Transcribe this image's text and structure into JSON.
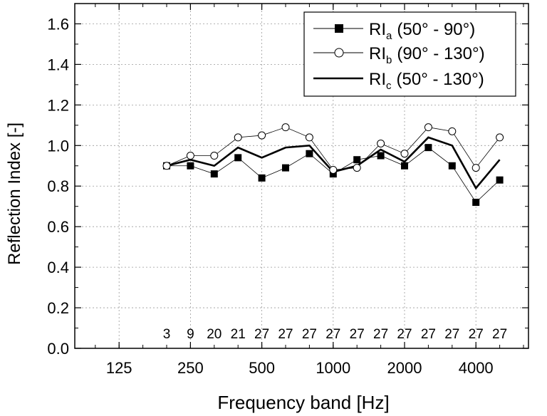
{
  "chart_data": {
    "type": "line",
    "xlabel": "Frequency band [Hz]",
    "ylabel": "Reflection Index [-]",
    "ylim": [
      0,
      1.7
    ],
    "yticks": [
      "0.0",
      "0.2",
      "0.4",
      "0.6",
      "0.8",
      "1.0",
      "1.2",
      "1.4",
      "1.6"
    ],
    "xtick_labels": [
      "125",
      "250",
      "500",
      "1000",
      "2000",
      "4000"
    ],
    "x": [
      "200",
      "250",
      "315",
      "400",
      "500",
      "630",
      "800",
      "1000",
      "1250",
      "1600",
      "2000",
      "2500",
      "3150",
      "4000",
      "5000"
    ],
    "counts": [
      "3",
      "9",
      "20",
      "21",
      "27",
      "27",
      "27",
      "27",
      "27",
      "27",
      "27",
      "27",
      "27",
      "27",
      "27"
    ],
    "grid": true,
    "legend_position": "top-right",
    "series": [
      {
        "legend": {
          "base": "RI",
          "sub": "a",
          "range": "(50° -  90°)"
        },
        "marker": "filled-square",
        "values": [
          0.9,
          0.9,
          0.86,
          0.94,
          0.84,
          0.89,
          0.96,
          0.86,
          0.93,
          0.95,
          0.9,
          0.99,
          0.9,
          0.72,
          0.83
        ]
      },
      {
        "legend": {
          "base": "RI",
          "sub": "b",
          "range": "(90° - 130°)"
        },
        "marker": "open-circle",
        "values": [
          0.9,
          0.95,
          0.95,
          1.04,
          1.05,
          1.09,
          1.04,
          0.88,
          0.89,
          1.01,
          0.96,
          1.09,
          1.07,
          0.89,
          1.04
        ]
      },
      {
        "legend": {
          "base": "RI",
          "sub": "c",
          "range": "(50° - 130°)"
        },
        "marker": "none",
        "values": [
          0.9,
          0.93,
          0.9,
          0.99,
          0.94,
          0.99,
          1.0,
          0.87,
          0.9,
          0.98,
          0.92,
          1.04,
          1.0,
          0.79,
          0.93
        ]
      }
    ]
  }
}
